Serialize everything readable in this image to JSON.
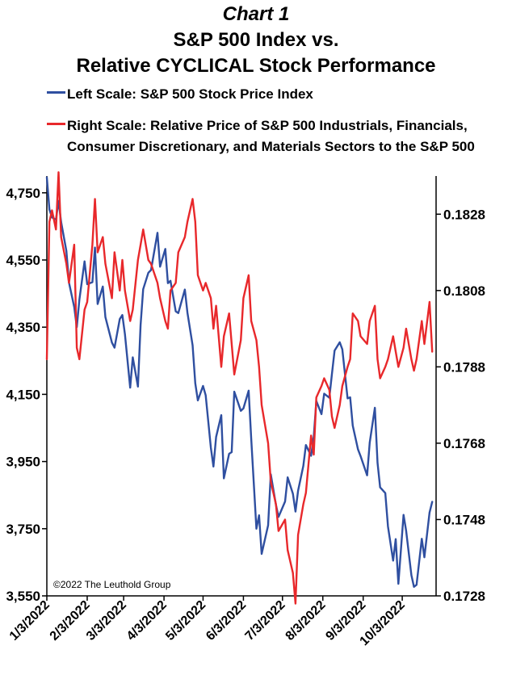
{
  "header": {
    "chart_label": "Chart 1",
    "title_line1": "S&P 500 Index vs.",
    "title_line2": "Relative CYCLICAL Stock Performance"
  },
  "legend": {
    "blue_line1": "Left Scale: S&P 500 Stock Price Index",
    "red_line1": "Right Scale: Relative Price of S&P 500 Industrials, Financials,",
    "red_line2": "Consumer Discretionary, and Materials Sectors to the S&P 500"
  },
  "copyright": "©2022 The Leuthold Group",
  "colors": {
    "sp500": "#2f4fa0",
    "relative": "#e8282b"
  },
  "chart_data": {
    "type": "line",
    "title": "S&P 500 Index vs. Relative CYCLICAL Stock Performance",
    "x_tick_labels": [
      "1/3/2022",
      "2/3/2022",
      "3/3/2022",
      "4/3/2022",
      "5/3/2022",
      "6/3/2022",
      "7/3/2022",
      "8/3/2022",
      "9/3/2022",
      "10/3/2022"
    ],
    "left_axis": {
      "ylim": [
        3550,
        4800
      ],
      "ticks": [
        "3,550",
        "3,750",
        "3,950",
        "4,150",
        "4,350",
        "4,550",
        "4,750"
      ],
      "tick_values": [
        3550,
        3750,
        3950,
        4150,
        4350,
        4550,
        4750
      ]
    },
    "right_axis": {
      "ylim": [
        0.1728,
        0.1838
      ],
      "ticks": [
        "0.1728",
        "0.1748",
        "0.1768",
        "0.1788",
        "0.1808",
        "0.1828"
      ],
      "tick_values": [
        0.1728,
        0.1748,
        0.1768,
        0.1788,
        0.1808,
        0.1828
      ]
    },
    "grid": false,
    "series": [
      {
        "name": "Left Scale: S&P 500 Stock Price Index",
        "axis": "left",
        "color": "#2f4fa0",
        "points": [
          [
            "2022-01-03",
            4796
          ],
          [
            "2022-01-05",
            4700
          ],
          [
            "2022-01-07",
            4677
          ],
          [
            "2022-01-10",
            4670
          ],
          [
            "2022-01-12",
            4726
          ],
          [
            "2022-01-14",
            4663
          ],
          [
            "2022-01-18",
            4577
          ],
          [
            "2022-01-20",
            4483
          ],
          [
            "2022-01-24",
            4410
          ],
          [
            "2022-01-26",
            4350
          ],
          [
            "2022-01-28",
            4432
          ],
          [
            "2022-02-01",
            4546
          ],
          [
            "2022-02-03",
            4478
          ],
          [
            "2022-02-07",
            4484
          ],
          [
            "2022-02-09",
            4587
          ],
          [
            "2022-02-11",
            4419
          ],
          [
            "2022-02-15",
            4471
          ],
          [
            "2022-02-17",
            4380
          ],
          [
            "2022-02-22",
            4304
          ],
          [
            "2022-02-24",
            4289
          ],
          [
            "2022-02-28",
            4374
          ],
          [
            "2022-03-02",
            4386
          ],
          [
            "2022-03-04",
            4329
          ],
          [
            "2022-03-08",
            4170
          ],
          [
            "2022-03-10",
            4260
          ],
          [
            "2022-03-14",
            4173
          ],
          [
            "2022-03-16",
            4357
          ],
          [
            "2022-03-18",
            4463
          ],
          [
            "2022-03-22",
            4512
          ],
          [
            "2022-03-24",
            4520
          ],
          [
            "2022-03-29",
            4631
          ],
          [
            "2022-03-31",
            4530
          ],
          [
            "2022-04-04",
            4583
          ],
          [
            "2022-04-06",
            4481
          ],
          [
            "2022-04-08",
            4488
          ],
          [
            "2022-04-12",
            4397
          ],
          [
            "2022-04-14",
            4392
          ],
          [
            "2022-04-19",
            4462
          ],
          [
            "2022-04-21",
            4393
          ],
          [
            "2022-04-25",
            4296
          ],
          [
            "2022-04-27",
            4183
          ],
          [
            "2022-04-29",
            4132
          ],
          [
            "2022-05-03",
            4175
          ],
          [
            "2022-05-05",
            4147
          ],
          [
            "2022-05-09",
            3991
          ],
          [
            "2022-05-11",
            3935
          ],
          [
            "2022-05-13",
            4023
          ],
          [
            "2022-05-17",
            4088
          ],
          [
            "2022-05-19",
            3900
          ],
          [
            "2022-05-23",
            3973
          ],
          [
            "2022-05-25",
            3978
          ],
          [
            "2022-05-27",
            4158
          ],
          [
            "2022-06-01",
            4101
          ],
          [
            "2022-06-03",
            4108
          ],
          [
            "2022-06-07",
            4161
          ],
          [
            "2022-06-09",
            4017
          ],
          [
            "2022-06-13",
            3750
          ],
          [
            "2022-06-15",
            3790
          ],
          [
            "2022-06-17",
            3675
          ],
          [
            "2022-06-22",
            3760
          ],
          [
            "2022-06-24",
            3912
          ],
          [
            "2022-06-28",
            3821
          ],
          [
            "2022-06-30",
            3785
          ],
          [
            "2022-07-05",
            3831
          ],
          [
            "2022-07-07",
            3903
          ],
          [
            "2022-07-11",
            3854
          ],
          [
            "2022-07-13",
            3801
          ],
          [
            "2022-07-15",
            3863
          ],
          [
            "2022-07-19",
            3937
          ],
          [
            "2022-07-21",
            3999
          ],
          [
            "2022-07-25",
            3967
          ],
          [
            "2022-07-27",
            4024
          ],
          [
            "2022-07-29",
            4130
          ],
          [
            "2022-08-02",
            4091
          ],
          [
            "2022-08-04",
            4152
          ],
          [
            "2022-08-08",
            4140
          ],
          [
            "2022-08-10",
            4210
          ],
          [
            "2022-08-12",
            4280
          ],
          [
            "2022-08-16",
            4305
          ],
          [
            "2022-08-18",
            4284
          ],
          [
            "2022-08-22",
            4138
          ],
          [
            "2022-08-24",
            4141
          ],
          [
            "2022-08-26",
            4057
          ],
          [
            "2022-08-30",
            3986
          ],
          [
            "2022-09-01",
            3966
          ],
          [
            "2022-09-06",
            3909
          ],
          [
            "2022-09-08",
            4006
          ],
          [
            "2022-09-12",
            4110
          ],
          [
            "2022-09-14",
            3946
          ],
          [
            "2022-09-16",
            3873
          ],
          [
            "2022-09-20",
            3856
          ],
          [
            "2022-09-22",
            3757
          ],
          [
            "2022-09-26",
            3655
          ],
          [
            "2022-09-28",
            3719
          ],
          [
            "2022-09-30",
            3586
          ],
          [
            "2022-10-04",
            3791
          ],
          [
            "2022-10-06",
            3744
          ],
          [
            "2022-10-10",
            3612
          ],
          [
            "2022-10-12",
            3577
          ],
          [
            "2022-10-14",
            3583
          ],
          [
            "2022-10-18",
            3720
          ],
          [
            "2022-10-20",
            3665
          ],
          [
            "2022-10-24",
            3798
          ],
          [
            "2022-10-26",
            3830
          ]
        ]
      },
      {
        "name": "Right Scale: Relative Price of S&P 500 Industrials, Financials, Consumer Discretionary, and Materials Sectors to the S&P 500",
        "axis": "right",
        "color": "#e8282b",
        "points": [
          [
            "2022-01-03",
            0.179
          ],
          [
            "2022-01-05",
            0.1826
          ],
          [
            "2022-01-07",
            0.1829
          ],
          [
            "2022-01-10",
            0.1824
          ],
          [
            "2022-01-12",
            0.1839
          ],
          [
            "2022-01-14",
            0.1822
          ],
          [
            "2022-01-18",
            0.1815
          ],
          [
            "2022-01-20",
            0.181
          ],
          [
            "2022-01-24",
            0.182
          ],
          [
            "2022-01-26",
            0.1793
          ],
          [
            "2022-01-28",
            0.179
          ],
          [
            "2022-02-01",
            0.1803
          ],
          [
            "2022-02-03",
            0.1805
          ],
          [
            "2022-02-07",
            0.182
          ],
          [
            "2022-02-09",
            0.1832
          ],
          [
            "2022-02-11",
            0.1818
          ],
          [
            "2022-02-15",
            0.1822
          ],
          [
            "2022-02-17",
            0.1815
          ],
          [
            "2022-02-22",
            0.1806
          ],
          [
            "2022-02-24",
            0.1818
          ],
          [
            "2022-02-28",
            0.1808
          ],
          [
            "2022-03-02",
            0.1816
          ],
          [
            "2022-03-04",
            0.1808
          ],
          [
            "2022-03-08",
            0.18
          ],
          [
            "2022-03-10",
            0.1803
          ],
          [
            "2022-03-14",
            0.1816
          ],
          [
            "2022-03-16",
            0.182
          ],
          [
            "2022-03-18",
            0.1824
          ],
          [
            "2022-03-22",
            0.1816
          ],
          [
            "2022-03-24",
            0.1815
          ],
          [
            "2022-03-29",
            0.181
          ],
          [
            "2022-03-31",
            0.1806
          ],
          [
            "2022-04-04",
            0.18
          ],
          [
            "2022-04-06",
            0.1798
          ],
          [
            "2022-04-08",
            0.1808
          ],
          [
            "2022-04-12",
            0.181
          ],
          [
            "2022-04-14",
            0.1818
          ],
          [
            "2022-04-19",
            0.1822
          ],
          [
            "2022-04-21",
            0.1826
          ],
          [
            "2022-04-25",
            0.1832
          ],
          [
            "2022-04-27",
            0.1826
          ],
          [
            "2022-04-29",
            0.1812
          ],
          [
            "2022-05-03",
            0.1808
          ],
          [
            "2022-05-05",
            0.181
          ],
          [
            "2022-05-09",
            0.1806
          ],
          [
            "2022-05-11",
            0.1798
          ],
          [
            "2022-05-13",
            0.1804
          ],
          [
            "2022-05-17",
            0.1788
          ],
          [
            "2022-05-19",
            0.1796
          ],
          [
            "2022-05-23",
            0.1802
          ],
          [
            "2022-05-25",
            0.1794
          ],
          [
            "2022-05-27",
            0.1786
          ],
          [
            "2022-06-01",
            0.1795
          ],
          [
            "2022-06-03",
            0.1806
          ],
          [
            "2022-06-07",
            0.1812
          ],
          [
            "2022-06-09",
            0.18
          ],
          [
            "2022-06-13",
            0.1795
          ],
          [
            "2022-06-15",
            0.1788
          ],
          [
            "2022-06-17",
            0.1778
          ],
          [
            "2022-06-22",
            0.1768
          ],
          [
            "2022-06-24",
            0.1758
          ],
          [
            "2022-06-28",
            0.1752
          ],
          [
            "2022-06-30",
            0.1745
          ],
          [
            "2022-07-05",
            0.1748
          ],
          [
            "2022-07-07",
            0.174
          ],
          [
            "2022-07-11",
            0.1734
          ],
          [
            "2022-07-13",
            0.1726
          ],
          [
            "2022-07-15",
            0.1744
          ],
          [
            "2022-07-19",
            0.1752
          ],
          [
            "2022-07-21",
            0.1755
          ],
          [
            "2022-07-25",
            0.177
          ],
          [
            "2022-07-27",
            0.1765
          ],
          [
            "2022-07-29",
            0.178
          ],
          [
            "2022-08-02",
            0.1783
          ],
          [
            "2022-08-04",
            0.1785
          ],
          [
            "2022-08-08",
            0.1782
          ],
          [
            "2022-08-10",
            0.1775
          ],
          [
            "2022-08-12",
            0.1772
          ],
          [
            "2022-08-16",
            0.1778
          ],
          [
            "2022-08-18",
            0.1783
          ],
          [
            "2022-08-22",
            0.1788
          ],
          [
            "2022-08-24",
            0.179
          ],
          [
            "2022-08-26",
            0.1802
          ],
          [
            "2022-08-30",
            0.18
          ],
          [
            "2022-09-01",
            0.1796
          ],
          [
            "2022-09-06",
            0.1794
          ],
          [
            "2022-09-08",
            0.18
          ],
          [
            "2022-09-12",
            0.1804
          ],
          [
            "2022-09-14",
            0.179
          ],
          [
            "2022-09-16",
            0.1785
          ],
          [
            "2022-09-20",
            0.1788
          ],
          [
            "2022-09-22",
            0.179
          ],
          [
            "2022-09-26",
            0.1796
          ],
          [
            "2022-09-28",
            0.1792
          ],
          [
            "2022-09-30",
            0.1788
          ],
          [
            "2022-10-04",
            0.1793
          ],
          [
            "2022-10-06",
            0.1798
          ],
          [
            "2022-10-10",
            0.179
          ],
          [
            "2022-10-12",
            0.1787
          ],
          [
            "2022-10-14",
            0.179
          ],
          [
            "2022-10-18",
            0.18
          ],
          [
            "2022-10-20",
            0.1794
          ],
          [
            "2022-10-24",
            0.1805
          ],
          [
            "2022-10-26",
            0.1792
          ]
        ]
      }
    ]
  }
}
